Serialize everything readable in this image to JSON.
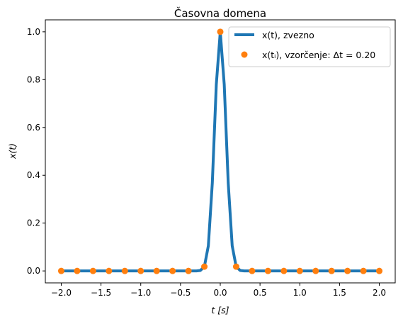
{
  "chart_data": {
    "type": "line",
    "title": "Časovna domena",
    "xlabel": "t [s]",
    "ylabel": "x(t)",
    "xlim": [
      -2.2,
      2.2
    ],
    "ylim": [
      -0.05,
      1.05
    ],
    "xticks": [
      -2.0,
      -1.5,
      -1.0,
      -0.5,
      0.0,
      0.5,
      1.0,
      1.5,
      2.0
    ],
    "xtick_labels": [
      "−2.0",
      "−1.5",
      "−1.0",
      "−0.5",
      "0.0",
      "0.5",
      "1.0",
      "1.5",
      "2.0"
    ],
    "yticks": [
      0.0,
      0.2,
      0.4,
      0.6,
      0.8,
      1.0
    ],
    "ytick_labels": [
      "0.0",
      "0.2",
      "0.4",
      "0.6",
      "0.8",
      "1.0"
    ],
    "grid": false,
    "legend_position": "upper right",
    "continuous": {
      "legend": "x(t), zvezno",
      "color": "#1f77b4",
      "x": [
        -2.0,
        -0.3,
        -0.25,
        -0.2,
        -0.15,
        -0.1,
        -0.05,
        0.0,
        0.05,
        0.1,
        0.15,
        0.2,
        0.25,
        0.3,
        2.0
      ],
      "y": [
        0.0,
        0.0,
        0.002,
        0.018,
        0.105,
        0.368,
        0.779,
        1.0,
        0.779,
        0.368,
        0.105,
        0.018,
        0.002,
        0.0,
        0.0
      ]
    },
    "sampled": {
      "legend": "x(tᵢ), vzorčenje: Δt = 0.20",
      "color": "#ff7f0e",
      "x": [
        -2.0,
        -1.8,
        -1.6,
        -1.4,
        -1.2,
        -1.0,
        -0.8,
        -0.6,
        -0.4,
        -0.2,
        0.0,
        0.2,
        0.4,
        0.6,
        0.8,
        1.0,
        1.2,
        1.4,
        1.6,
        1.8,
        2.0
      ],
      "y": [
        0.0,
        0.0,
        0.0,
        0.0,
        0.0,
        0.0,
        0.0,
        0.0,
        0.0,
        0.018,
        1.0,
        0.018,
        0.0,
        0.0,
        0.0,
        0.0,
        0.0,
        0.0,
        0.0,
        0.0,
        0.0
      ]
    }
  }
}
